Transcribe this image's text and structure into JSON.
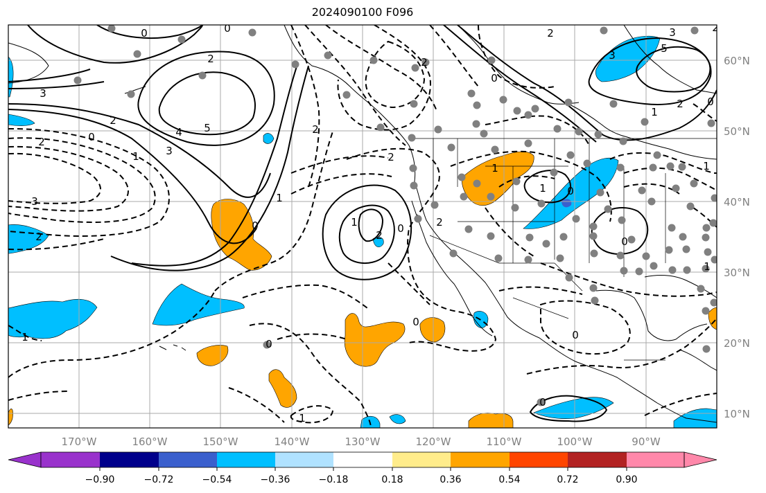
{
  "title": "2024090100 F096",
  "map": {
    "projection": "PlateCarree",
    "lon_range": [
      -180,
      -80
    ],
    "lat_range": [
      8,
      65
    ],
    "lat_ticks": [
      {
        "value": 10,
        "label": "10°N"
      },
      {
        "value": 20,
        "label": "20°N"
      },
      {
        "value": 30,
        "label": "30°N"
      },
      {
        "value": 40,
        "label": "40°N"
      },
      {
        "value": 50,
        "label": "50°N"
      },
      {
        "value": 60,
        "label": "60°N"
      }
    ],
    "lon_ticks": [
      {
        "value": -170,
        "label": "170°W"
      },
      {
        "value": -160,
        "label": "160°W"
      },
      {
        "value": -150,
        "label": "150°W"
      },
      {
        "value": -140,
        "label": "140°W"
      },
      {
        "value": -130,
        "label": "130°W"
      },
      {
        "value": -120,
        "label": "120°W"
      },
      {
        "value": -110,
        "label": "110°W"
      },
      {
        "value": -100,
        "label": "100°W"
      },
      {
        "value": -90,
        "label": "90°W"
      }
    ],
    "grid": true
  },
  "colorbar": {
    "colors": [
      "#9932cc",
      "#00008b",
      "#3a5fcd",
      "#00bfff",
      "#b0e2ff",
      "#ffffff",
      "#ffec8b",
      "#ffa500",
      "#ff4500",
      "#b22222",
      "#ff88aa"
    ],
    "tick_labels": [
      "−0.90",
      "−0.72",
      "−0.54",
      "−0.36",
      "−0.18",
      "0.18",
      "0.36",
      "0.54",
      "0.72",
      "0.90"
    ]
  },
  "contour_labels": [
    "0",
    "0",
    "2",
    "3",
    "3",
    "2",
    "0",
    "1",
    "2",
    "4",
    "5",
    "3",
    "2",
    "1",
    "0",
    "2",
    "1",
    "2",
    "0",
    "1",
    "2",
    "0",
    "2",
    "1",
    "0",
    "0",
    "1",
    "0",
    "0",
    "1",
    "0",
    "2",
    "3",
    "5",
    "1",
    "2",
    "0",
    "1",
    "2",
    "1",
    "0",
    "3",
    "2"
  ]
}
